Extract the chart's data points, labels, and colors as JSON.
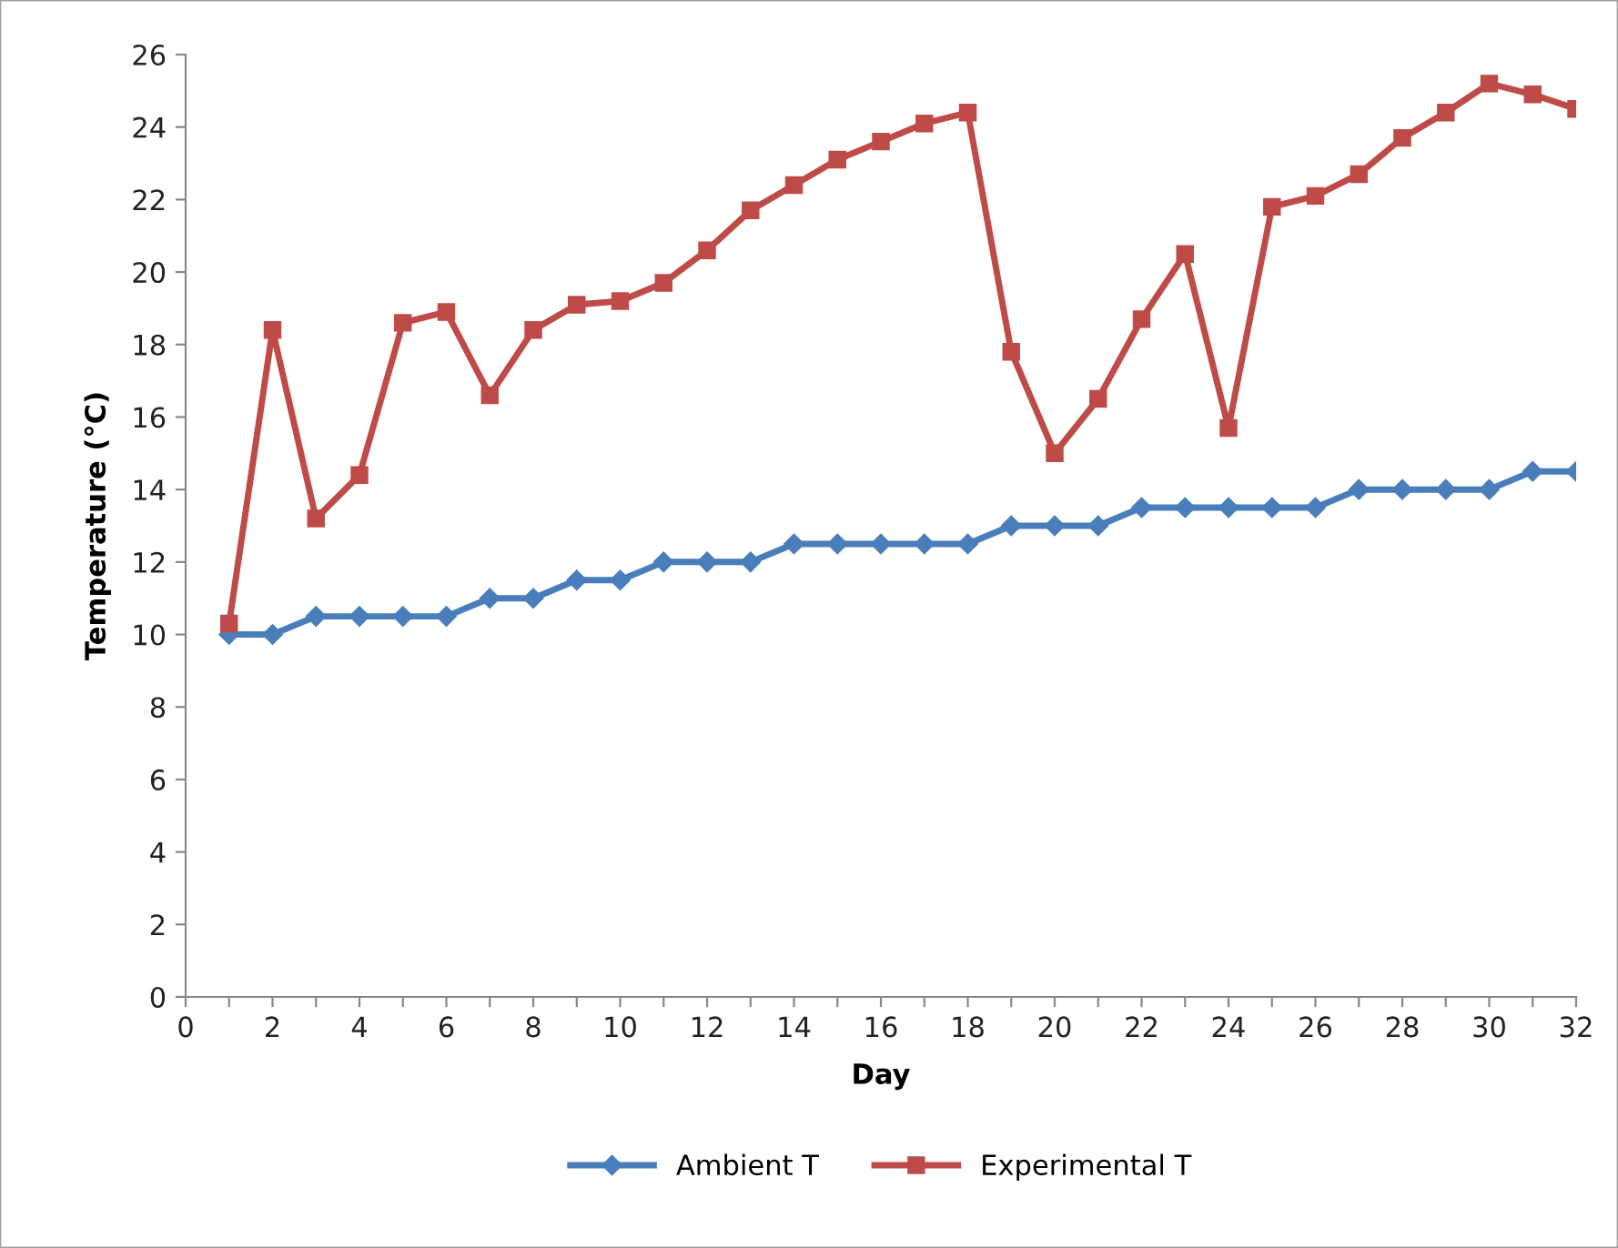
{
  "chart_data": {
    "type": "line",
    "xlabel": "Day",
    "ylabel": "Temperature (°C)",
    "x": [
      1,
      2,
      3,
      4,
      5,
      6,
      7,
      8,
      9,
      10,
      11,
      12,
      13,
      14,
      15,
      16,
      17,
      18,
      19,
      20,
      21,
      22,
      23,
      24,
      25,
      26,
      27,
      28,
      29,
      30,
      31,
      32
    ],
    "series": [
      {
        "name": "Ambient T",
        "color": "#4a7ebb",
        "marker": "diamond",
        "values": [
          10,
          10,
          10.5,
          10.5,
          10.5,
          10.5,
          11,
          11,
          11.5,
          11.5,
          12,
          12,
          12,
          12.5,
          12.5,
          12.5,
          12.5,
          12.5,
          13,
          13,
          13,
          13.5,
          13.5,
          13.5,
          13.5,
          13.5,
          14,
          14,
          14,
          14,
          14.5,
          14.5
        ]
      },
      {
        "name": "Experimental T",
        "color": "#be4b48",
        "marker": "square",
        "values": [
          10.3,
          18.4,
          13.2,
          14.4,
          18.6,
          18.9,
          16.6,
          18.4,
          19.1,
          19.2,
          19.7,
          20.6,
          21.7,
          22.4,
          23.1,
          23.6,
          24.1,
          24.4,
          17.8,
          15.0,
          16.5,
          18.7,
          20.5,
          15.7,
          21.8,
          22.1,
          22.7,
          23.7,
          24.4,
          25.2,
          24.9,
          24.5
        ]
      }
    ],
    "xlim": [
      0,
      32
    ],
    "xticks": [
      0,
      {
        "value": 1,
        "label": null
      },
      2,
      {
        "value": 3,
        "label": null
      },
      4,
      {
        "value": 5,
        "label": null
      },
      6,
      {
        "value": 7,
        "label": null
      },
      8,
      {
        "value": 9,
        "label": null
      },
      10,
      {
        "value": 11,
        "label": null
      },
      12,
      {
        "value": 13,
        "label": null
      },
      14,
      {
        "value": 15,
        "label": null
      },
      16,
      {
        "value": 17,
        "label": null
      },
      18,
      {
        "value": 19,
        "label": null
      },
      20,
      {
        "value": 21,
        "label": null
      },
      22,
      {
        "value": 23,
        "label": null
      },
      24,
      {
        "value": 25,
        "label": null
      },
      26,
      {
        "value": 27,
        "label": null
      },
      28,
      {
        "value": 29,
        "label": null
      },
      30,
      {
        "value": 31,
        "label": null
      },
      32
    ],
    "ylim": [
      0,
      26
    ],
    "yticks": [
      0,
      2,
      4,
      6,
      8,
      10,
      12,
      14,
      16,
      18,
      20,
      22,
      24,
      26
    ],
    "grid": false,
    "legend": "bottom",
    "line_style": "solid"
  }
}
